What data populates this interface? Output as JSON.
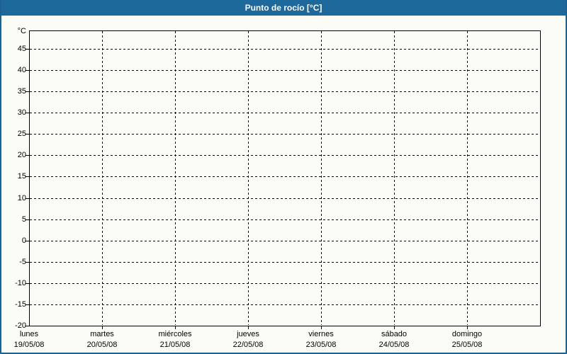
{
  "header": {
    "title": "Punto de rocío [°C]"
  },
  "colors": {
    "titlebar": "#1e699c",
    "frame": "#1d6191",
    "background": "#fbfcf5",
    "grid": "#000000",
    "text": "#000000",
    "title_text": "#ffffff"
  },
  "chart_data": {
    "type": "line",
    "title": "Punto de rocío [°C]",
    "ylabel": "°C",
    "ylim": [
      -20,
      48.5
    ],
    "yticks": [
      45,
      40,
      35,
      30,
      25,
      20,
      15,
      10,
      5,
      0,
      -5,
      -10,
      -15,
      -20
    ],
    "ytick_step": 5,
    "grid": "dashed",
    "legend": "none",
    "x_categories": [
      {
        "day": "lunes",
        "date": "19/05/08"
      },
      {
        "day": "martes",
        "date": "20/05/08"
      },
      {
        "day": "miércoles",
        "date": "21/05/08"
      },
      {
        "day": "jueves",
        "date": "22/05/08"
      },
      {
        "day": "viernes",
        "date": "23/05/08"
      },
      {
        "day": "sábado",
        "date": "24/05/08"
      },
      {
        "day": "domingo",
        "date": "25/05/08"
      }
    ],
    "series": []
  }
}
